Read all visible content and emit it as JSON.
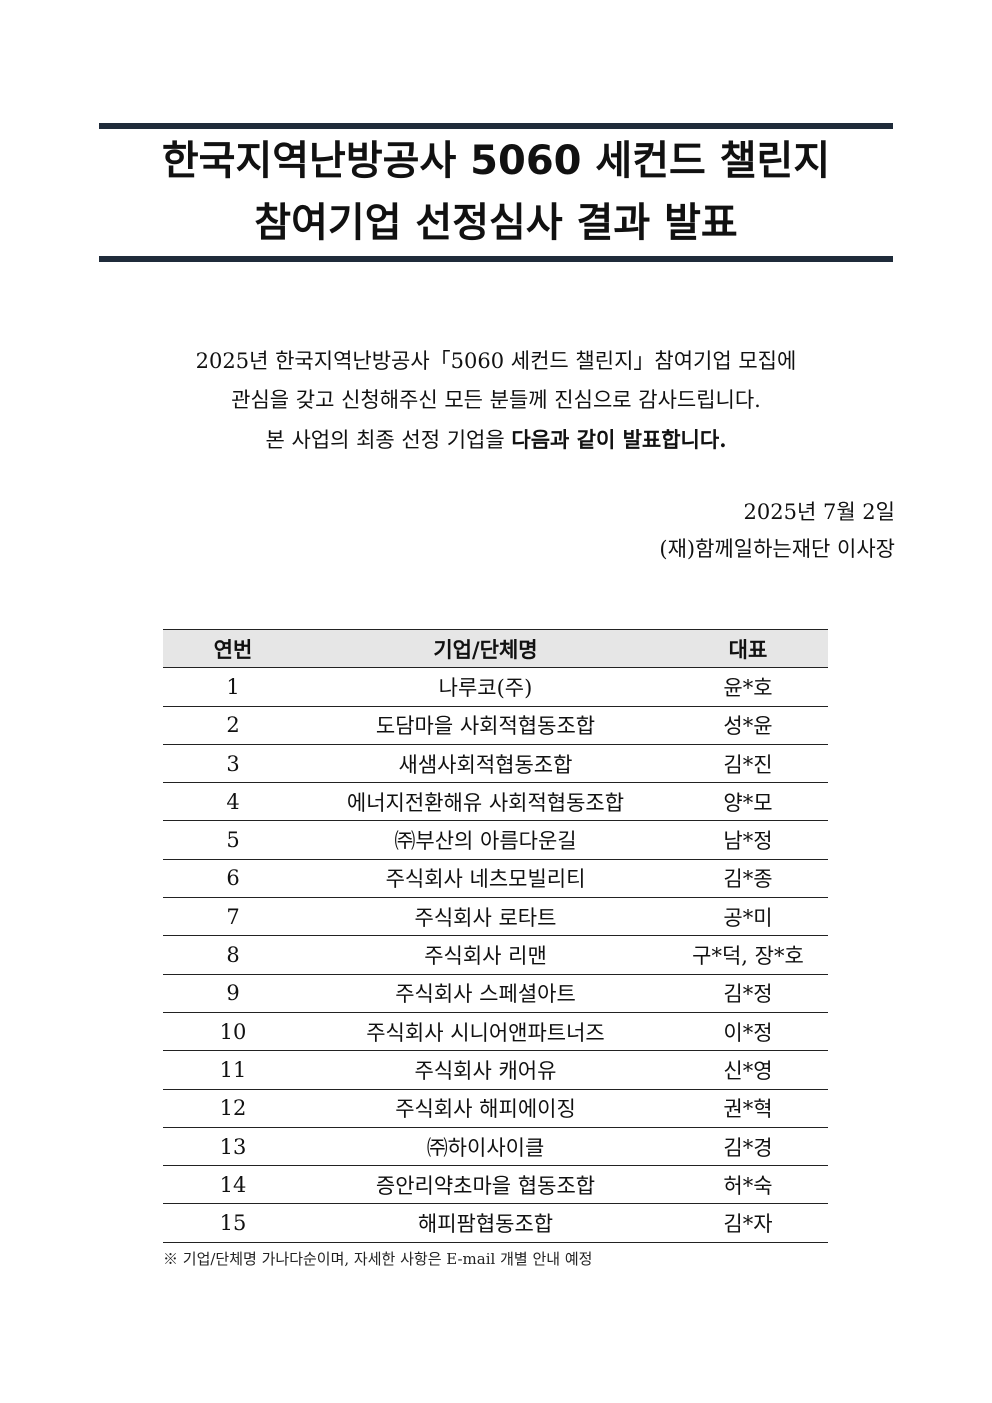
{
  "title": {
    "line1": "한국지역난방공사 5060 세컨드 챌린지",
    "line2": "참여기업 선정심사 결과 발표"
  },
  "intro": {
    "line1": "2025년 한국지역난방공사「5060 세컨드 챌린지」참여기업 모집에",
    "line2": "관심을 갖고 신청해주신 모든 분들께 진심으로 감사드립니다.",
    "line3_normal": "본 사업의 최종 선정 기업을 ",
    "line3_bold": "다음과 같이 발표합니다."
  },
  "signature": {
    "date": "2025년 7월 2일",
    "issuer": "(재)함께일하는재단 이사장"
  },
  "table": {
    "headers": [
      "연번",
      "기업/단체명",
      "대표"
    ],
    "rows": [
      [
        "1",
        "나루코(주)",
        "윤*호"
      ],
      [
        "2",
        "도담마을 사회적협동조합",
        "성*윤"
      ],
      [
        "3",
        "새샘사회적협동조합",
        "김*진"
      ],
      [
        "4",
        "에너지전환해유 사회적협동조합",
        "양*모"
      ],
      [
        "5",
        "㈜부산의 아름다운길",
        "남*정"
      ],
      [
        "6",
        "주식회사 네츠모빌리티",
        "김*종"
      ],
      [
        "7",
        "주식회사 로타트",
        "공*미"
      ],
      [
        "8",
        "주식회사 리맨",
        "구*덕, 장*호"
      ],
      [
        "9",
        "주식회사 스페셜아트",
        "김*정"
      ],
      [
        "10",
        "주식회사 시니어앤파트너즈",
        "이*정"
      ],
      [
        "11",
        "주식회사 캐어유",
        "신*영"
      ],
      [
        "12",
        "주식회사 해피에이징",
        "권*혁"
      ],
      [
        "13",
        "㈜하이사이클",
        "김*경"
      ],
      [
        "14",
        "증안리약초마을 협동조합",
        "허*숙"
      ],
      [
        "15",
        "해피팜협동조합",
        "김*자"
      ]
    ]
  },
  "note": "※ 기업/단체명 가나다순이며, 자세한 사항은 E-mail 개별 안내 예정",
  "colors": {
    "rule": "#1f2b3a",
    "header_bg": "#e6e6e6"
  }
}
